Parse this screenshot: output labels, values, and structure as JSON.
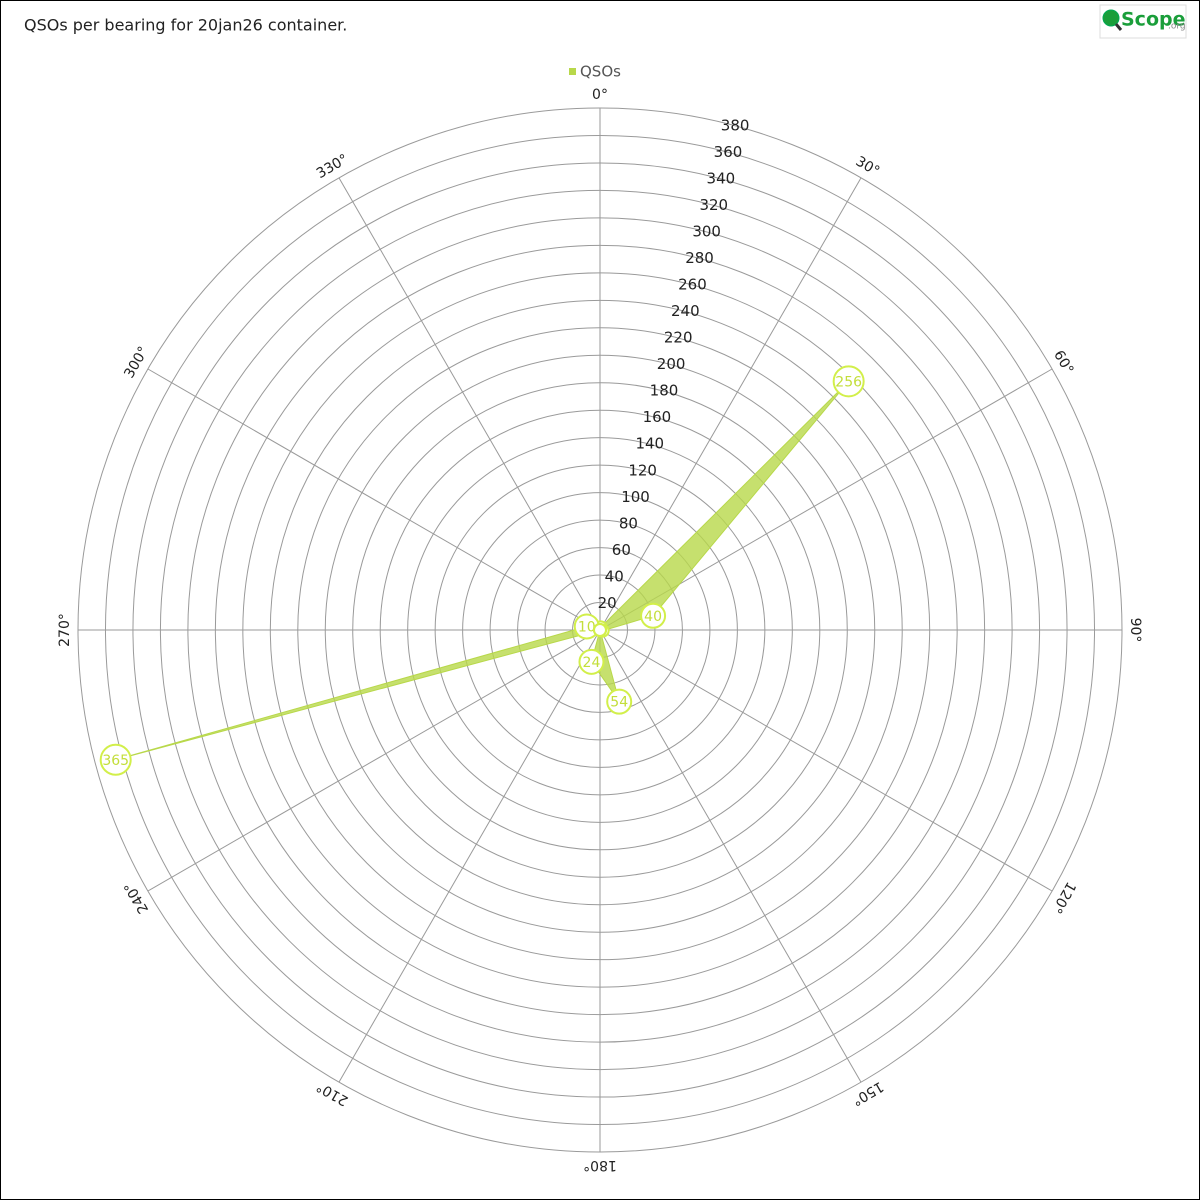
{
  "chart_data": {
    "type": "polar-area",
    "title": "QSOs per bearing for 20jan26 container.",
    "logo_text": "Scope",
    "logo_suffix": ".org",
    "x": [
      15,
      45,
      75,
      105,
      135,
      165,
      195,
      225,
      255,
      285,
      315,
      345
    ],
    "series": [
      {
        "name": "QSOs",
        "color": "#b8d84a",
        "values": [
          2,
          256,
          40,
          2,
          0,
          54,
          24,
          0,
          365,
          10,
          0,
          0
        ]
      }
    ],
    "ylim": [
      0,
      380
    ],
    "yticks": [
      20,
      40,
      60,
      80,
      100,
      120,
      140,
      160,
      180,
      200,
      220,
      240,
      260,
      280,
      300,
      320,
      340,
      360,
      380
    ],
    "xticks": [
      {
        "value": 0,
        "label": "0°"
      },
      {
        "value": 30,
        "label": "30°"
      },
      {
        "value": 60,
        "label": "60°"
      },
      {
        "value": 90,
        "label": "90°"
      },
      {
        "value": 120,
        "label": "120°"
      },
      {
        "value": 150,
        "label": "150°"
      },
      {
        "value": 180,
        "label": "180°"
      },
      {
        "value": 210,
        "label": "210°"
      },
      {
        "value": 240,
        "label": "240°"
      },
      {
        "value": 270,
        "label": "270°"
      },
      {
        "value": 300,
        "label": "300°"
      },
      {
        "value": 330,
        "label": "330°"
      }
    ],
    "grid": true
  }
}
